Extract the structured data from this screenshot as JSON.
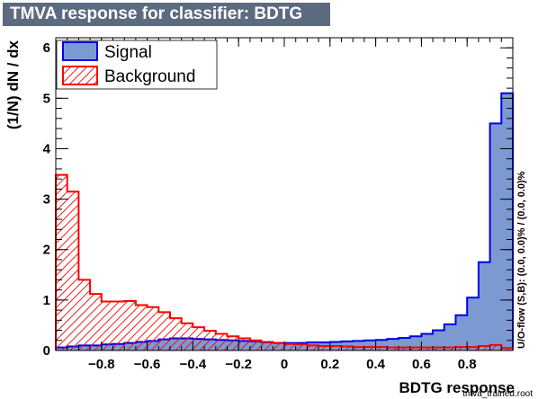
{
  "title": "TMVA response for classifier: BDTG",
  "chart_data": {
    "type": "histogram",
    "xlabel": "BDTG response",
    "ylabel": "(1/N) dN / dx",
    "xlim": [
      -1.0,
      1.0
    ],
    "ylim": [
      0,
      6.2
    ],
    "xticks": [
      "−0.8",
      "−0.6",
      "−0.4",
      "−0.2",
      "0",
      "0.2",
      "0.4",
      "0.6",
      "0.8"
    ],
    "xtick_values": [
      -0.8,
      -0.6,
      -0.4,
      -0.2,
      0,
      0.2,
      0.4,
      0.6,
      0.8
    ],
    "yticks": [
      "0",
      "1",
      "2",
      "3",
      "4",
      "5",
      "6"
    ],
    "ytick_values": [
      0,
      1,
      2,
      3,
      4,
      5,
      6
    ],
    "bin_edges_range": [
      -1.0,
      1.0
    ],
    "n_bins": 40,
    "series": [
      {
        "name": "Signal",
        "color": "#0000ee",
        "fill": "#7d99d1",
        "style": "solid",
        "values": [
          0.06,
          0.08,
          0.1,
          0.1,
          0.12,
          0.13,
          0.15,
          0.17,
          0.19,
          0.22,
          0.24,
          0.24,
          0.23,
          0.22,
          0.21,
          0.2,
          0.19,
          0.18,
          0.16,
          0.15,
          0.15,
          0.15,
          0.16,
          0.16,
          0.17,
          0.18,
          0.19,
          0.2,
          0.21,
          0.23,
          0.25,
          0.28,
          0.33,
          0.4,
          0.52,
          0.7,
          1.05,
          1.75,
          4.5,
          5.1
        ]
      },
      {
        "name": "Background",
        "color": "#ff0000",
        "fill": "#ff0000",
        "style": "hatched",
        "values": [
          3.48,
          3.15,
          1.4,
          1.12,
          0.97,
          0.97,
          0.98,
          0.9,
          0.86,
          0.76,
          0.64,
          0.54,
          0.46,
          0.39,
          0.33,
          0.28,
          0.24,
          0.2,
          0.17,
          0.15,
          0.13,
          0.12,
          0.1,
          0.09,
          0.09,
          0.08,
          0.07,
          0.07,
          0.07,
          0.06,
          0.06,
          0.06,
          0.06,
          0.06,
          0.06,
          0.07,
          0.07,
          0.09,
          0.11,
          0.05
        ]
      }
    ],
    "legend_position": "top-left",
    "side_note": "U/O-flow (S,B): (0.0, 0.0)% / (0.0, 0.0)%",
    "footer_note": "tmva_trained.root"
  }
}
